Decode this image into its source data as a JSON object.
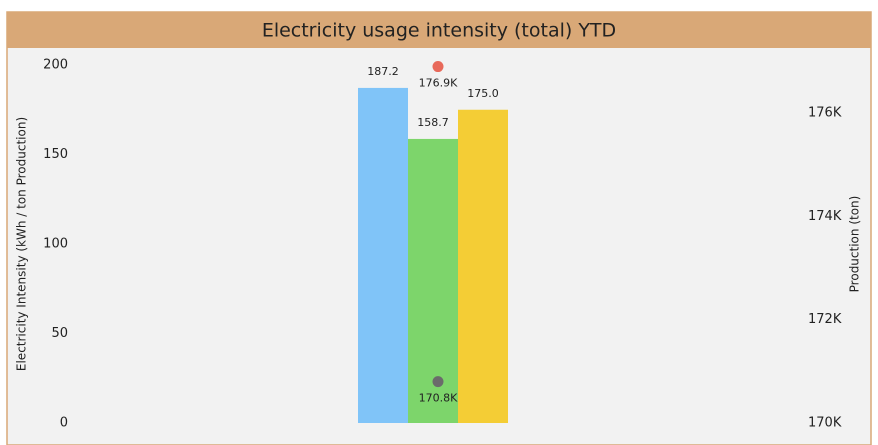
{
  "chart_data": {
    "type": "bar",
    "title": "Electricity usage intensity (total) YTD",
    "ylabel": "Electricity Intensity (kWh / ton Production)",
    "y2label": "Production (ton)",
    "categories": [
      null,
      null,
      null
    ],
    "values": [
      187.2,
      158.7,
      175.0
    ],
    "value_labels": [
      "187.2",
      "158.7",
      "175.0"
    ],
    "colors": [
      "#80c4f8",
      "#7dd56b",
      "#f4cd35"
    ],
    "ylim": [
      0,
      200
    ],
    "yticks": [
      0,
      50,
      100,
      150,
      200
    ],
    "y2lim": [
      170000,
      176930
    ],
    "y2ticks": [
      {
        "value": 170000,
        "label": "170K"
      },
      {
        "value": 172000,
        "label": "172K"
      },
      {
        "value": 174000,
        "label": "174K"
      },
      {
        "value": 176000,
        "label": "176K"
      }
    ],
    "points": {
      "type": "scatter",
      "axis": "y2",
      "category": 1,
      "values": [
        176900,
        170800
      ],
      "value_labels": [
        "176.9K",
        "170.8K"
      ],
      "colors": [
        "#e8695a",
        "#6b6b6b"
      ]
    }
  }
}
